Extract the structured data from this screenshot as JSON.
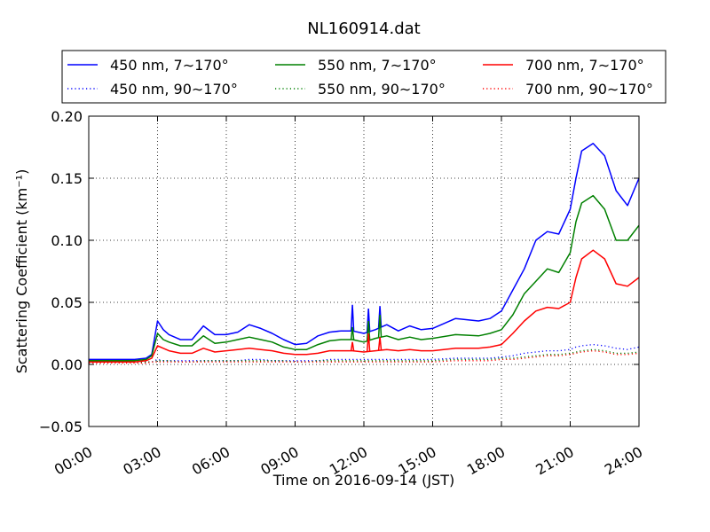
{
  "chart_data": {
    "type": "line",
    "title": "NL160914.dat",
    "xlabel": "Time on 2016-09-14 (JST)",
    "ylabel": "Scattering Coefficient (km⁻¹)",
    "xlim": [
      "00:00",
      "24:00"
    ],
    "ylim": [
      -0.05,
      0.2
    ],
    "x_tick_labels": [
      "00:00",
      "03:00",
      "06:00",
      "09:00",
      "12:00",
      "15:00",
      "18:00",
      "21:00",
      "24:00"
    ],
    "y_tick_labels": [
      "−0.05",
      "0.00",
      "0.05",
      "0.10",
      "0.15",
      "0.20"
    ],
    "y_ticks": [
      -0.05,
      0.0,
      0.05,
      0.1,
      0.15,
      0.2
    ],
    "grid": true,
    "legend_position": "top",
    "x": [
      "00:00",
      "01:00",
      "02:00",
      "02:30",
      "02:45",
      "03:00",
      "03:15",
      "03:30",
      "04:00",
      "04:30",
      "05:00",
      "05:30",
      "06:00",
      "06:30",
      "07:00",
      "07:30",
      "08:00",
      "08:30",
      "09:00",
      "09:30",
      "10:00",
      "10:30",
      "11:00",
      "11:30",
      "12:00",
      "12:30",
      "13:00",
      "13:30",
      "14:00",
      "14:30",
      "15:00",
      "16:00",
      "17:00",
      "17:30",
      "18:00",
      "18:30",
      "19:00",
      "19:30",
      "20:00",
      "20:30",
      "21:00",
      "21:15",
      "21:30",
      "22:00",
      "22:30",
      "23:00",
      "23:30",
      "24:00"
    ],
    "series": [
      {
        "name": "450 nm, 7∼170°",
        "color": "#0000ff",
        "style": "solid",
        "values": [
          0.004,
          0.004,
          0.004,
          0.005,
          0.008,
          0.035,
          0.028,
          0.024,
          0.02,
          0.02,
          0.031,
          0.024,
          0.024,
          0.026,
          0.032,
          0.029,
          0.025,
          0.02,
          0.016,
          0.017,
          0.023,
          0.026,
          0.027,
          0.027,
          0.025,
          0.028,
          0.032,
          0.027,
          0.031,
          0.028,
          0.029,
          0.037,
          0.035,
          0.037,
          0.043,
          0.06,
          0.077,
          0.1,
          0.107,
          0.105,
          0.125,
          0.15,
          0.172,
          0.178,
          0.168,
          0.14,
          0.128,
          0.15
        ]
      },
      {
        "name": "550 nm, 7∼170°",
        "color": "#008000",
        "style": "solid",
        "values": [
          0.003,
          0.003,
          0.003,
          0.004,
          0.007,
          0.025,
          0.02,
          0.018,
          0.015,
          0.015,
          0.023,
          0.017,
          0.018,
          0.02,
          0.022,
          0.02,
          0.018,
          0.014,
          0.012,
          0.012,
          0.016,
          0.019,
          0.02,
          0.02,
          0.018,
          0.021,
          0.023,
          0.02,
          0.022,
          0.02,
          0.021,
          0.024,
          0.023,
          0.025,
          0.028,
          0.04,
          0.057,
          0.067,
          0.077,
          0.074,
          0.09,
          0.115,
          0.13,
          0.136,
          0.125,
          0.1,
          0.1,
          0.112
        ]
      },
      {
        "name": "700 nm, 7∼170°",
        "color": "#ff0000",
        "style": "solid",
        "values": [
          0.002,
          0.002,
          0.002,
          0.003,
          0.005,
          0.015,
          0.013,
          0.011,
          0.009,
          0.009,
          0.013,
          0.01,
          0.011,
          0.012,
          0.013,
          0.012,
          0.011,
          0.009,
          0.008,
          0.008,
          0.009,
          0.011,
          0.011,
          0.011,
          0.01,
          0.011,
          0.012,
          0.011,
          0.012,
          0.011,
          0.011,
          0.013,
          0.013,
          0.014,
          0.016,
          0.025,
          0.035,
          0.043,
          0.046,
          0.045,
          0.05,
          0.07,
          0.085,
          0.092,
          0.085,
          0.065,
          0.063,
          0.07
        ]
      },
      {
        "name": "450 nm, 90∼170°",
        "color": "#0000ff",
        "style": "dotted",
        "values": [
          0.002,
          0.002,
          0.002,
          0.002,
          0.002,
          0.004,
          0.003,
          0.003,
          0.003,
          0.003,
          0.003,
          0.003,
          0.003,
          0.003,
          0.004,
          0.004,
          0.003,
          0.003,
          0.003,
          0.003,
          0.003,
          0.004,
          0.004,
          0.004,
          0.004,
          0.004,
          0.004,
          0.004,
          0.004,
          0.004,
          0.004,
          0.005,
          0.005,
          0.005,
          0.006,
          0.007,
          0.009,
          0.01,
          0.011,
          0.011,
          0.012,
          0.014,
          0.015,
          0.016,
          0.015,
          0.013,
          0.012,
          0.014
        ]
      },
      {
        "name": "550 nm, 90∼170°",
        "color": "#008000",
        "style": "dotted",
        "values": [
          0.002,
          0.002,
          0.002,
          0.002,
          0.002,
          0.003,
          0.003,
          0.003,
          0.002,
          0.002,
          0.003,
          0.003,
          0.003,
          0.003,
          0.003,
          0.003,
          0.003,
          0.003,
          0.002,
          0.002,
          0.003,
          0.003,
          0.003,
          0.003,
          0.003,
          0.003,
          0.003,
          0.003,
          0.003,
          0.003,
          0.003,
          0.004,
          0.004,
          0.004,
          0.005,
          0.005,
          0.006,
          0.007,
          0.008,
          0.008,
          0.009,
          0.01,
          0.011,
          0.012,
          0.011,
          0.009,
          0.009,
          0.01
        ]
      },
      {
        "name": "700 nm, 90∼170°",
        "color": "#ff0000",
        "style": "dotted",
        "values": [
          0.001,
          0.001,
          0.001,
          0.001,
          0.002,
          0.002,
          0.002,
          0.002,
          0.002,
          0.002,
          0.002,
          0.002,
          0.002,
          0.002,
          0.002,
          0.002,
          0.002,
          0.002,
          0.002,
          0.002,
          0.002,
          0.002,
          0.002,
          0.002,
          0.002,
          0.002,
          0.002,
          0.002,
          0.002,
          0.002,
          0.002,
          0.003,
          0.003,
          0.003,
          0.004,
          0.004,
          0.005,
          0.006,
          0.007,
          0.007,
          0.008,
          0.009,
          0.01,
          0.011,
          0.01,
          0.008,
          0.008,
          0.009
        ]
      }
    ],
    "spikes": [
      {
        "x": "11:30",
        "series": [
          {
            "name": "450 nm, 7∼170°",
            "value": 0.048
          },
          {
            "name": "550 nm, 7∼170°",
            "value": 0.03
          },
          {
            "name": "700 nm, 7∼170°",
            "value": 0.018
          }
        ]
      },
      {
        "x": "12:12",
        "series": [
          {
            "name": "450 nm, 7∼170°",
            "value": 0.045
          },
          {
            "name": "550 nm, 7∼170°",
            "value": 0.035
          },
          {
            "name": "700 nm, 7∼170°",
            "value": 0.025
          }
        ]
      },
      {
        "x": "12:42",
        "series": [
          {
            "name": "450 nm, 7∼170°",
            "value": 0.047
          },
          {
            "name": "550 nm, 7∼170°",
            "value": 0.04
          },
          {
            "name": "700 nm, 7∼170°",
            "value": 0.022
          }
        ]
      }
    ]
  }
}
